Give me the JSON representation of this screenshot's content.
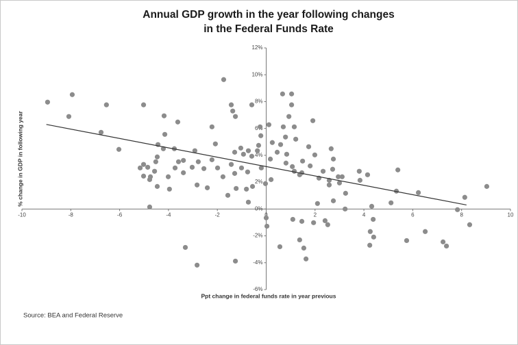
{
  "chart_data": {
    "type": "scatter",
    "title_lines": [
      "Annual GDP growth in the year following changes",
      "in the Federal Funds Rate"
    ],
    "x_label": "Ppt change in federal funds rate in year previous",
    "y_label": "% change in GDP in following year",
    "source": "Source: BEA and Federal Reserve",
    "color": "#8c8c8c",
    "trendline": {
      "x": [
        -9,
        8.2
      ],
      "y": [
        6.3,
        0.3
      ],
      "color": "#333333"
    },
    "xlim": [
      -10,
      10
    ],
    "xticks": [
      -10,
      -8,
      -6,
      -4,
      -2,
      0,
      2,
      4,
      6,
      8,
      10
    ],
    "ylim": [
      -6,
      12
    ],
    "yticks": [
      {
        "value": -6,
        "label": "-6%"
      },
      {
        "value": -4,
        "label": "-4%"
      },
      {
        "value": -2,
        "label": "-2%"
      },
      {
        "value": 0,
        "label": "0%"
      },
      {
        "value": 2,
        "label": "2%"
      },
      {
        "value": 4,
        "label": "4%"
      },
      {
        "value": 6,
        "label": "6%"
      },
      {
        "value": 8,
        "label": "8%"
      },
      {
        "value": 10,
        "label": "10%"
      },
      {
        "value": 12,
        "label": "12%"
      }
    ],
    "x": [
      -8.95,
      -7.94,
      -8.08,
      -6.54,
      -6.76,
      -6.03,
      -5.02,
      -4.18,
      -1.74,
      0.67,
      1.04,
      -1.43,
      -0.59,
      -4.77,
      -3.31,
      -2.83,
      -1.26,
      0.03,
      0,
      0.56,
      1.54,
      1.63,
      1.37,
      1.09,
      1.46,
      1.94,
      2.52,
      2.41,
      4.24,
      4.26,
      4.4,
      4.38,
      5.11,
      5.75,
      6.51,
      7.24,
      7.38,
      8.33,
      7.83,
      5.39,
      5.33,
      6.23,
      8.13,
      9.03,
      4.32,
      4.15,
      3.81,
      3.84,
      3.25,
      3.23,
      2.75,
      2.72,
      2.1,
      2.16,
      1.99,
      1.74,
      1.91,
      2.66,
      2.75,
      2.95,
      3.11,
      3.0,
      2.58,
      2.58,
      2.33,
      1.46,
      1.37,
      1.15,
      1.07,
      0.81,
      1.49,
      1.8,
      1.21,
      1.15,
      1.04,
      0.93,
      0.7,
      0.79,
      0.59,
      0.45,
      0.84,
      0.25,
      0.11,
      -0.25,
      -0.22,
      -0.31,
      -0.36,
      -0.59,
      -0.73,
      -0.93,
      -1.04,
      -1.29,
      -1.43,
      -1.29,
      -1.01,
      -0.76,
      -0.2,
      0.17,
      0.2,
      -0.03,
      -0.56,
      -0.81,
      -1.23,
      -0.73,
      -1.37,
      -1.26,
      -2.22,
      -2.08,
      -2.22,
      -1.99,
      -1.77,
      -2.55,
      -2.78,
      -2.92,
      -3.03,
      -3.59,
      -3.62,
      -3.76,
      -4.21,
      -4.15,
      -4.43,
      -4.52,
      -4.57,
      -4.85,
      -5.02,
      -5.16,
      -5.02,
      -4.74,
      -4.46,
      -3.96,
      -3.73,
      -3.39,
      -3.39,
      -4.01,
      -2.83,
      -2.41,
      -1.57,
      -4.46,
      -4.77
    ],
    "y": [
      7.96,
      8.52,
      6.89,
      7.76,
      5.71,
      4.44,
      7.76,
      6.94,
      9.64,
      8.57,
      8.57,
      7.76,
      7.76,
      0.15,
      -2.86,
      -4.18,
      -3.88,
      -1.28,
      -0.66,
      -2.81,
      -2.91,
      -3.72,
      -2.3,
      -0.77,
      -0.92,
      -1.02,
      -1.17,
      -0.87,
      -2.7,
      -1.68,
      -2.09,
      -0.77,
      0.46,
      -2.35,
      -1.68,
      -2.45,
      -2.76,
      -1.17,
      -0.05,
      2.91,
      1.33,
      1.22,
      0.87,
      1.68,
      0.2,
      2.55,
      2.81,
      2.14,
      1.17,
      0,
      0.61,
      2.96,
      0.41,
      2.3,
      4.03,
      4.64,
      6.58,
      4.49,
      3.72,
      2.4,
      2.4,
      1.94,
      1.79,
      2.14,
      2.81,
      2.7,
      2.55,
      2.81,
      3.16,
      3.42,
      3.57,
      3.21,
      5.2,
      6.12,
      7.76,
      6.89,
      6.12,
      5.36,
      4.8,
      4.23,
      4.08,
      4.95,
      6.28,
      6.12,
      5.46,
      4.74,
      4.34,
      3.93,
      4.34,
      4.08,
      4.54,
      4.23,
      3.32,
      2.65,
      3.06,
      2.76,
      3.06,
      3.72,
      2.19,
      1.89,
      1.68,
      1.48,
      1.53,
      0.51,
      7.3,
      6.89,
      6.12,
      4.85,
      3.67,
      3.06,
      2.4,
      3.01,
      3.52,
      4.34,
      3.11,
      3.52,
      6.48,
      4.49,
      4.49,
      5.56,
      4.8,
      3.52,
      2.81,
      3.11,
      3.32,
      3.06,
      2.45,
      2.4,
      1.68,
      1.48,
      3.06,
      3.62,
      2.7,
      2.4,
      1.79,
      1.58,
      1.02,
      3.88,
      2.19
    ]
  }
}
